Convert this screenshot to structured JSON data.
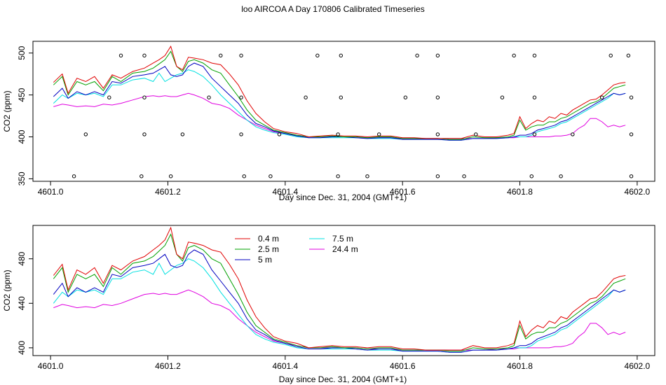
{
  "title": "loo AIRCOA A  Day 170806  Calibrated Timeseries",
  "chart_data": [
    {
      "type": "line",
      "panel": "top",
      "xlabel": "Day since Dec. 31, 2004 (GMT+1)",
      "ylabel": "CO2 (ppm)",
      "xlim": [
        4600.97,
        4602.03
      ],
      "ylim": [
        347,
        514
      ],
      "xticks": [
        4601.0,
        4601.2,
        4601.4,
        4601.6,
        4601.8,
        4602.0
      ],
      "xtick_labels": [
        "4601.0",
        "4601.2",
        "4601.4",
        "4601.6",
        "4601.8",
        "4602.0"
      ],
      "yticks": [
        350,
        400,
        450,
        500
      ],
      "ytick_labels": [
        "350",
        "400",
        "450",
        "500"
      ],
      "grid": false,
      "markers": {
        "row_350": [
          4601.04,
          4601.155,
          4601.205,
          4601.33,
          4601.375,
          4601.49,
          4601.54,
          4601.66,
          4601.705,
          4601.82,
          4601.87,
          4601.99
        ],
        "row_403": [
          4601.06,
          4601.16,
          4601.225,
          4601.325,
          4601.39,
          4601.49,
          4601.56,
          4601.66,
          4601.725,
          4601.825,
          4601.89,
          4601.99
        ],
        "row_447": [
          4601.1,
          4601.16,
          4601.27,
          4601.325,
          4601.435,
          4601.495,
          4601.605,
          4601.66,
          4601.77,
          4601.825,
          4601.94,
          4601.99
        ],
        "row_497": [
          4601.12,
          4601.16,
          4601.29,
          4601.325,
          4601.455,
          4601.495,
          4601.625,
          4601.66,
          4601.79,
          4601.825,
          4601.955,
          4601.985
        ]
      }
    },
    {
      "type": "line",
      "panel": "bottom",
      "xlabel": "Day since Dec. 31, 2004 (GMT+1)",
      "ylabel": "CO2 (ppm)",
      "xlim": [
        4600.97,
        4602.03
      ],
      "ylim": [
        393,
        510
      ],
      "xticks": [
        4601.0,
        4601.2,
        4601.4,
        4601.6,
        4601.8,
        4602.0
      ],
      "xtick_labels": [
        "4601.0",
        "4601.2",
        "4601.4",
        "4601.6",
        "4601.8",
        "4602.0"
      ],
      "yticks": [
        400,
        440,
        480
      ],
      "ytick_labels": [
        "400",
        "440",
        "480"
      ],
      "grid": false,
      "legend": {
        "placement": "top-center",
        "entries": [
          {
            "name": "0.4 m",
            "color": "#e00000"
          },
          {
            "name": "2.5 m",
            "color": "#00a000"
          },
          {
            "name": "5 m",
            "color": "#0000c0"
          },
          {
            "name": "7.5 m",
            "color": "#00e0e0"
          },
          {
            "name": "24.4 m",
            "color": "#e000e0"
          }
        ]
      }
    }
  ],
  "series": [
    {
      "name": "0.4 m",
      "color": "#e00000",
      "x": [
        4601.005,
        4601.02,
        4601.03,
        4601.045,
        4601.06,
        4601.075,
        4601.09,
        4601.105,
        4601.12,
        4601.14,
        4601.16,
        4601.175,
        4601.185,
        4601.195,
        4601.205,
        4601.215,
        4601.225,
        4601.235,
        4601.245,
        4601.26,
        4601.275,
        4601.29,
        4601.305,
        4601.32,
        4601.335,
        4601.35,
        4601.365,
        4601.38,
        4601.4,
        4601.42,
        4601.44,
        4601.46,
        4601.48,
        4601.5,
        4601.52,
        4601.54,
        4601.56,
        4601.58,
        4601.6,
        4601.62,
        4601.64,
        4601.66,
        4601.68,
        4601.7,
        4601.72,
        4601.74,
        4601.76,
        4601.78,
        4601.79,
        4601.8,
        4601.81,
        4601.82,
        4601.83,
        4601.84,
        4601.85,
        4601.86,
        4601.87,
        4601.88,
        4601.89,
        4601.9,
        4601.91,
        4601.92,
        4601.93,
        4601.94,
        4601.95,
        4601.96,
        4601.97,
        4601.98
      ],
      "values": [
        465,
        475,
        452,
        470,
        466,
        472,
        458,
        474,
        470,
        478,
        482,
        488,
        492,
        497,
        508,
        484,
        480,
        495,
        494,
        492,
        488,
        486,
        475,
        462,
        443,
        428,
        418,
        410,
        406,
        404,
        400,
        401,
        402,
        401,
        401,
        400,
        401,
        401,
        399,
        399,
        398,
        398,
        398,
        398,
        402,
        400,
        400,
        402,
        404,
        424,
        410,
        416,
        420,
        418,
        424,
        422,
        428,
        426,
        432,
        436,
        440,
        444,
        445,
        450,
        456,
        462,
        464,
        465
      ]
    },
    {
      "name": "2.5 m",
      "color": "#00a000",
      "x": [
        4601.005,
        4601.02,
        4601.03,
        4601.045,
        4601.06,
        4601.075,
        4601.09,
        4601.105,
        4601.12,
        4601.14,
        4601.16,
        4601.175,
        4601.185,
        4601.195,
        4601.205,
        4601.215,
        4601.225,
        4601.235,
        4601.245,
        4601.26,
        4601.275,
        4601.29,
        4601.305,
        4601.32,
        4601.335,
        4601.35,
        4601.365,
        4601.38,
        4601.4,
        4601.42,
        4601.44,
        4601.46,
        4601.48,
        4601.5,
        4601.52,
        4601.54,
        4601.56,
        4601.58,
        4601.6,
        4601.62,
        4601.64,
        4601.66,
        4601.68,
        4601.7,
        4601.72,
        4601.74,
        4601.76,
        4601.78,
        4601.79,
        4601.8,
        4601.81,
        4601.82,
        4601.83,
        4601.84,
        4601.85,
        4601.86,
        4601.87,
        4601.88,
        4601.89,
        4601.9,
        4601.91,
        4601.92,
        4601.93,
        4601.94,
        4601.95,
        4601.96,
        4601.97,
        4601.98
      ],
      "values": [
        462,
        472,
        450,
        466,
        462,
        466,
        455,
        472,
        466,
        476,
        478,
        482,
        487,
        492,
        502,
        484,
        478,
        490,
        492,
        488,
        480,
        476,
        462,
        448,
        432,
        420,
        414,
        408,
        405,
        402,
        400,
        400,
        401,
        400,
        400,
        399,
        400,
        400,
        398,
        398,
        398,
        398,
        397,
        397,
        400,
        399,
        399,
        400,
        402,
        420,
        408,
        412,
        414,
        414,
        418,
        418,
        422,
        424,
        428,
        432,
        436,
        440,
        442,
        446,
        452,
        458,
        460,
        462
      ]
    },
    {
      "name": "5 m",
      "color": "#0000c0",
      "x": [
        4601.005,
        4601.02,
        4601.03,
        4601.045,
        4601.06,
        4601.075,
        4601.09,
        4601.105,
        4601.12,
        4601.14,
        4601.16,
        4601.175,
        4601.185,
        4601.195,
        4601.205,
        4601.215,
        4601.225,
        4601.235,
        4601.245,
        4601.26,
        4601.275,
        4601.29,
        4601.305,
        4601.32,
        4601.335,
        4601.35,
        4601.365,
        4601.38,
        4601.4,
        4601.42,
        4601.44,
        4601.46,
        4601.48,
        4601.5,
        4601.52,
        4601.54,
        4601.56,
        4601.58,
        4601.6,
        4601.62,
        4601.64,
        4601.66,
        4601.68,
        4601.7,
        4601.72,
        4601.74,
        4601.76,
        4601.78,
        4601.79,
        4601.8,
        4601.81,
        4601.82,
        4601.83,
        4601.84,
        4601.85,
        4601.86,
        4601.87,
        4601.88,
        4601.89,
        4601.9,
        4601.91,
        4601.92,
        4601.93,
        4601.94,
        4601.95,
        4601.96,
        4601.97,
        4601.98
      ],
      "values": [
        448,
        458,
        446,
        454,
        450,
        454,
        450,
        466,
        464,
        472,
        474,
        476,
        480,
        484,
        474,
        472,
        474,
        484,
        488,
        484,
        470,
        460,
        450,
        440,
        426,
        416,
        412,
        407,
        404,
        401,
        399,
        399,
        400,
        400,
        399,
        398,
        399,
        399,
        397,
        397,
        397,
        397,
        396,
        396,
        398,
        398,
        398,
        399,
        400,
        402,
        402,
        404,
        408,
        410,
        412,
        414,
        418,
        420,
        424,
        428,
        432,
        436,
        440,
        444,
        448,
        452,
        450,
        452
      ]
    },
    {
      "name": "7.5 m",
      "color": "#00e0e0",
      "x": [
        4601.005,
        4601.02,
        4601.03,
        4601.045,
        4601.06,
        4601.075,
        4601.09,
        4601.105,
        4601.12,
        4601.14,
        4601.16,
        4601.175,
        4601.185,
        4601.195,
        4601.205,
        4601.215,
        4601.225,
        4601.235,
        4601.245,
        4601.26,
        4601.275,
        4601.29,
        4601.305,
        4601.32,
        4601.335,
        4601.35,
        4601.365,
        4601.38,
        4601.4,
        4601.42,
        4601.44,
        4601.46,
        4601.48,
        4601.5,
        4601.52,
        4601.54,
        4601.56,
        4601.58,
        4601.6,
        4601.62,
        4601.64,
        4601.66,
        4601.68,
        4601.7,
        4601.72,
        4601.74,
        4601.76,
        4601.78,
        4601.79,
        4601.8,
        4601.81,
        4601.82,
        4601.83,
        4601.84,
        4601.85,
        4601.86,
        4601.87,
        4601.88,
        4601.89,
        4601.9,
        4601.91,
        4601.92,
        4601.93,
        4601.94,
        4601.95,
        4601.96,
        4601.97,
        4601.98
      ],
      "values": [
        440,
        450,
        446,
        452,
        450,
        452,
        448,
        462,
        462,
        468,
        470,
        466,
        476,
        466,
        470,
        474,
        476,
        480,
        478,
        472,
        462,
        450,
        440,
        430,
        420,
        412,
        408,
        405,
        403,
        400,
        399,
        399,
        399,
        399,
        399,
        398,
        398,
        398,
        397,
        397,
        397,
        397,
        396,
        396,
        398,
        398,
        398,
        399,
        400,
        400,
        400,
        402,
        406,
        408,
        410,
        412,
        416,
        418,
        422,
        426,
        430,
        434,
        438,
        442,
        446,
        452,
        450,
        452
      ]
    },
    {
      "name": "24.4 m",
      "color": "#e000e0",
      "x": [
        4601.005,
        4601.02,
        4601.03,
        4601.045,
        4601.06,
        4601.075,
        4601.09,
        4601.105,
        4601.12,
        4601.14,
        4601.16,
        4601.175,
        4601.185,
        4601.195,
        4601.205,
        4601.215,
        4601.225,
        4601.235,
        4601.245,
        4601.26,
        4601.275,
        4601.29,
        4601.305,
        4601.32,
        4601.335,
        4601.35,
        4601.365,
        4601.38,
        4601.4,
        4601.42,
        4601.44,
        4601.46,
        4601.48,
        4601.5,
        4601.52,
        4601.54,
        4601.56,
        4601.58,
        4601.6,
        4601.62,
        4601.64,
        4601.66,
        4601.68,
        4601.7,
        4601.72,
        4601.74,
        4601.76,
        4601.78,
        4601.79,
        4601.8,
        4601.81,
        4601.82,
        4601.83,
        4601.84,
        4601.85,
        4601.86,
        4601.87,
        4601.88,
        4601.89,
        4601.9,
        4601.91,
        4601.92,
        4601.93,
        4601.94,
        4601.95,
        4601.96,
        4601.97,
        4601.98
      ],
      "values": [
        436,
        439,
        438,
        436,
        437,
        436,
        439,
        438,
        440,
        444,
        448,
        449,
        448,
        449,
        448,
        448,
        450,
        452,
        450,
        446,
        440,
        438,
        434,
        426,
        420,
        414,
        410,
        406,
        404,
        402,
        400,
        400,
        400,
        400,
        400,
        399,
        399,
        399,
        398,
        398,
        398,
        398,
        398,
        398,
        398,
        398,
        399,
        399,
        399,
        400,
        400,
        400,
        400,
        400,
        400,
        401,
        401,
        402,
        404,
        410,
        414,
        422,
        422,
        418,
        412,
        414,
        412,
        414
      ]
    }
  ]
}
